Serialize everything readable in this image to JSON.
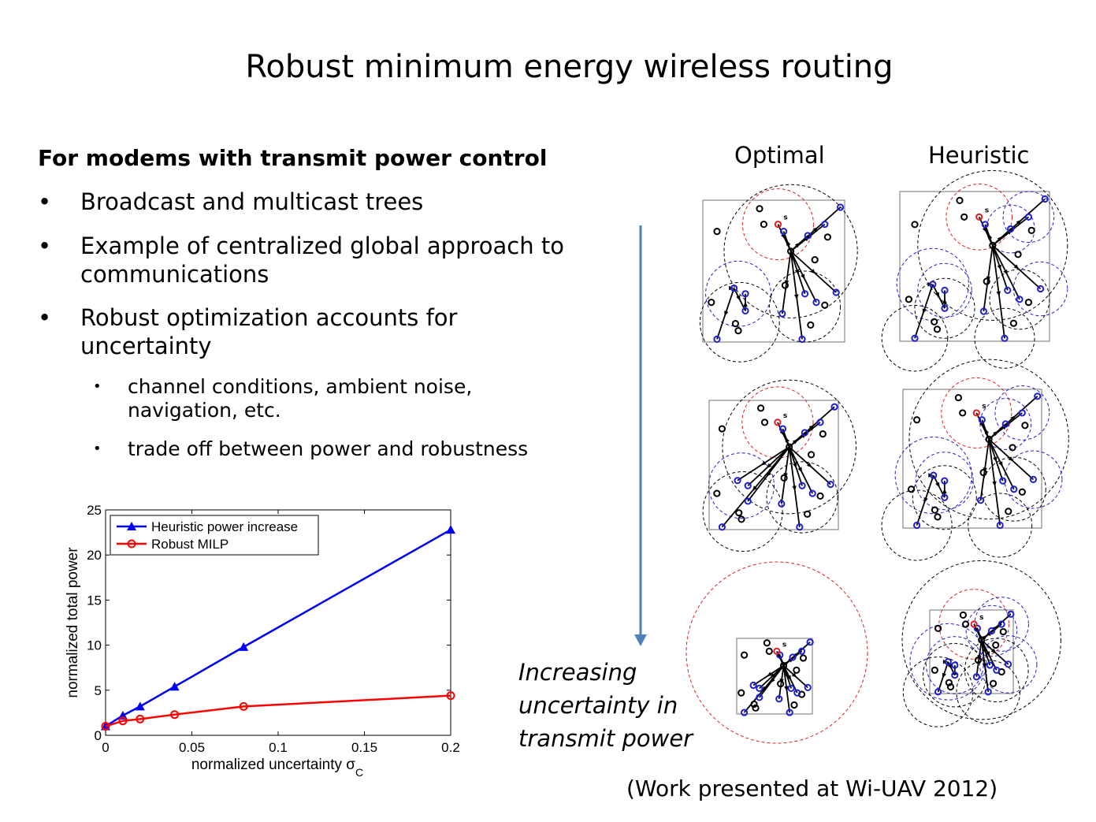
{
  "slide": {
    "title": "Robust minimum energy wireless routing",
    "heading": "For modems with transmit power control",
    "bullets": [
      "Broadcast and multicast trees",
      "Example of centralized global approach to",
      "communications",
      "Robust optimization accounts for",
      "uncertainty"
    ],
    "sub_bullets": [
      "channel conditions, ambient noise,",
      "navigation, etc.",
      "trade off between power and robustness"
    ],
    "bullet_glyph": "•",
    "column_labels": {
      "optimal": "Optimal",
      "heuristic": "Heuristic"
    },
    "arrow_caption": [
      "Increasing",
      "uncertainty in",
      "transmit power"
    ],
    "credit": "(Work presented at Wi-UAV 2012)",
    "source_label": "s"
  },
  "chart_data": {
    "type": "line",
    "xlabel": "normalized uncertainty σ",
    "xlabel_sub": "C",
    "ylabel": "normalized total power",
    "xlim": [
      0,
      0.2
    ],
    "ylim": [
      0,
      25
    ],
    "xticks": [
      "0",
      "0.05",
      "0.1",
      "0.15",
      "0.2"
    ],
    "yticks": [
      "0",
      "5",
      "10",
      "15",
      "20",
      "25"
    ],
    "grid": false,
    "legend_position": "top-left",
    "series": [
      {
        "name": "Heuristic power increase",
        "color": "#0000ff",
        "marker": "triangle",
        "x": [
          0,
          0.01,
          0.02,
          0.04,
          0.08,
          0.2
        ],
        "values": [
          1.0,
          2.2,
          3.2,
          5.4,
          9.8,
          22.8
        ]
      },
      {
        "name": "Robust MILP",
        "color": "#ff0000",
        "marker": "circle",
        "x": [
          0,
          0.01,
          0.02,
          0.04,
          0.08,
          0.2
        ],
        "values": [
          1.0,
          1.6,
          1.8,
          2.3,
          3.2,
          4.4
        ]
      }
    ]
  }
}
